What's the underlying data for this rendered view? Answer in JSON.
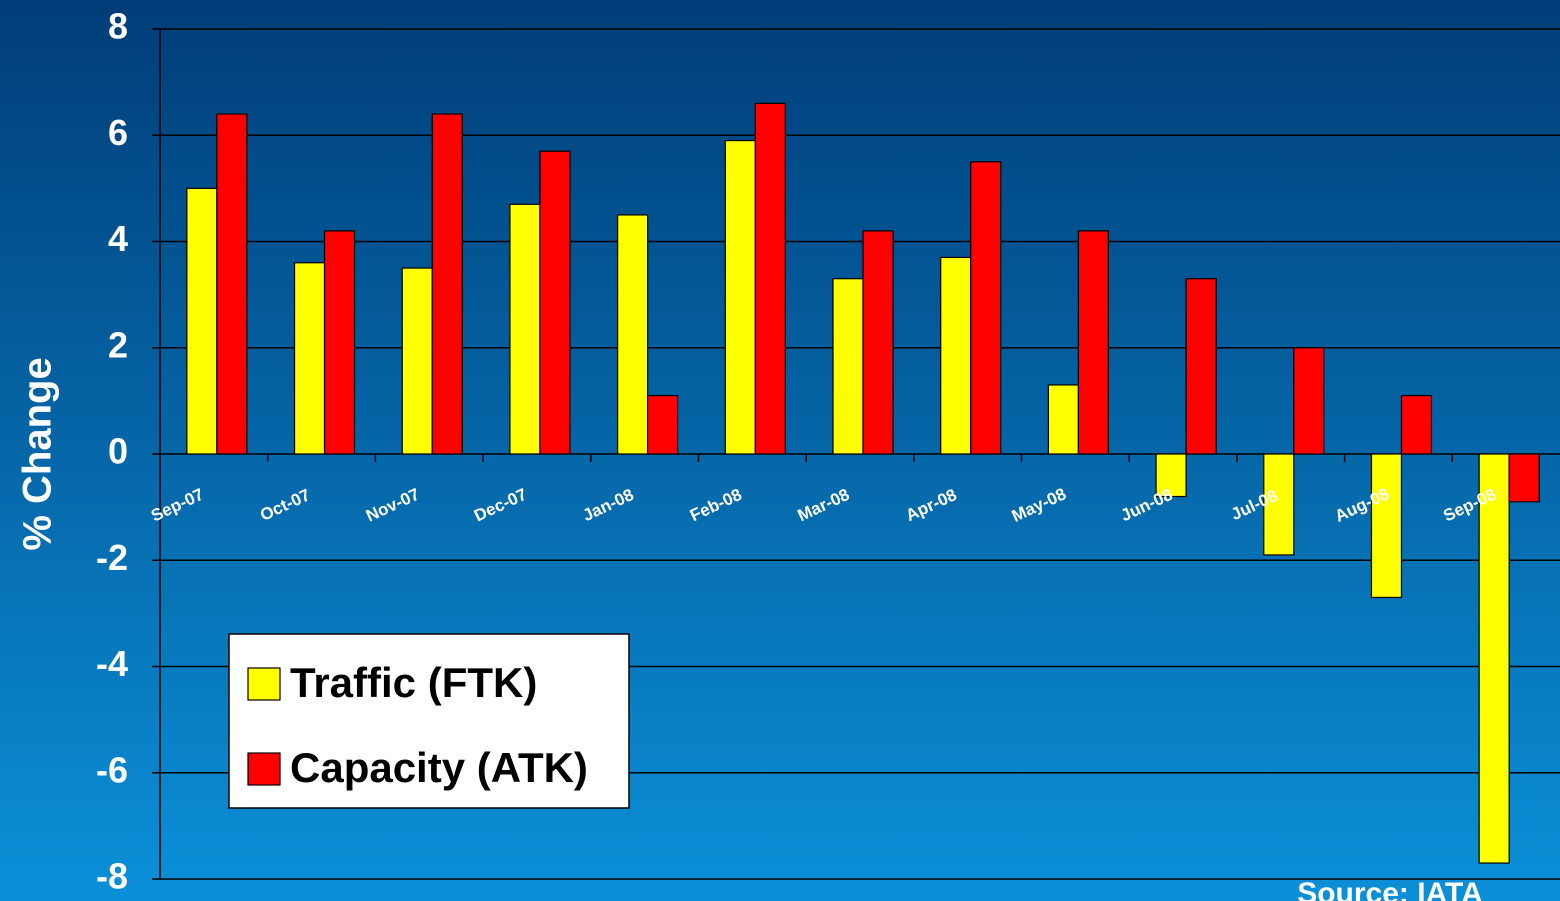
{
  "chart_data": {
    "type": "bar",
    "y_label": "% Change",
    "source": "Source: IATA",
    "categories": [
      "Sep-07",
      "Oct-07",
      "Nov-07",
      "Dec-07",
      "Jan-08",
      "Feb-08",
      "Mar-08",
      "Apr-08",
      "May-08",
      "Jun-08",
      "Jul-08",
      "Aug-08",
      "Sep-08"
    ],
    "series": [
      {
        "name": "Traffic (FTK)",
        "color": "#ffff00",
        "values": [
          5.0,
          3.6,
          3.5,
          4.7,
          4.5,
          5.9,
          3.3,
          3.7,
          1.3,
          -0.8,
          -1.9,
          -2.7,
          -7.7
        ]
      },
      {
        "name": "Capacity (ATK)",
        "color": "#ff0000",
        "values": [
          6.4,
          4.2,
          6.4,
          5.7,
          1.1,
          6.6,
          4.2,
          5.5,
          4.2,
          3.3,
          2.0,
          1.1,
          -0.9
        ]
      }
    ],
    "ylim": [
      -8,
      8
    ],
    "yticks": [
      -8,
      -6,
      -4,
      -2,
      0,
      2,
      4,
      6,
      8
    ],
    "grid": true,
    "legend": "lower left"
  }
}
